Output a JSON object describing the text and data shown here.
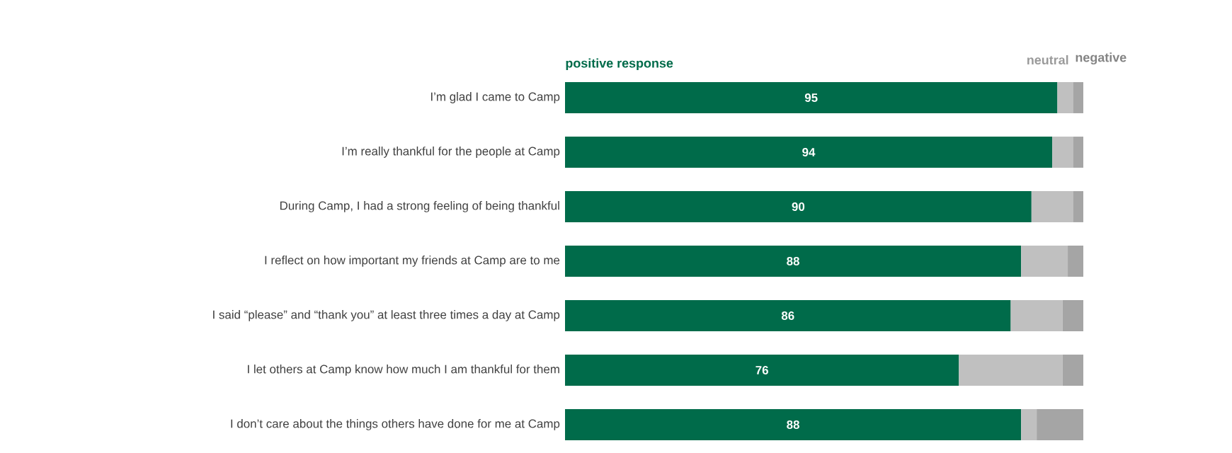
{
  "chart_data": {
    "type": "bar",
    "orientation": "horizontal",
    "stacked": true,
    "xlim": [
      0,
      100
    ],
    "categories": [
      "I’m glad I came to Camp",
      "I’m really thankful for the people at Camp",
      "During Camp, I had a strong feeling of being thankful",
      "I reflect on how important my friends at Camp are to me",
      "I said “please” and “thank you” at least three times a day at Camp",
      "I let others at Camp know how much I am thankful for them",
      "I don’t care about the things others have done for me at Camp"
    ],
    "series": [
      {
        "name": "positive response",
        "color": "#006b4a",
        "values": [
          95,
          94,
          90,
          88,
          86,
          76,
          88
        ],
        "value_labels": [
          "95",
          "94",
          "90",
          "88",
          "86",
          "76",
          "88"
        ]
      },
      {
        "name": "neutral",
        "color": "#c0c0c0",
        "values": [
          3,
          4,
          8,
          9,
          10,
          20,
          3
        ]
      },
      {
        "name": "negative",
        "color": "#a5a5a5",
        "values": [
          2,
          2,
          2,
          3,
          4,
          4,
          9
        ]
      }
    ],
    "legend": "top",
    "tick_labels": "y"
  }
}
